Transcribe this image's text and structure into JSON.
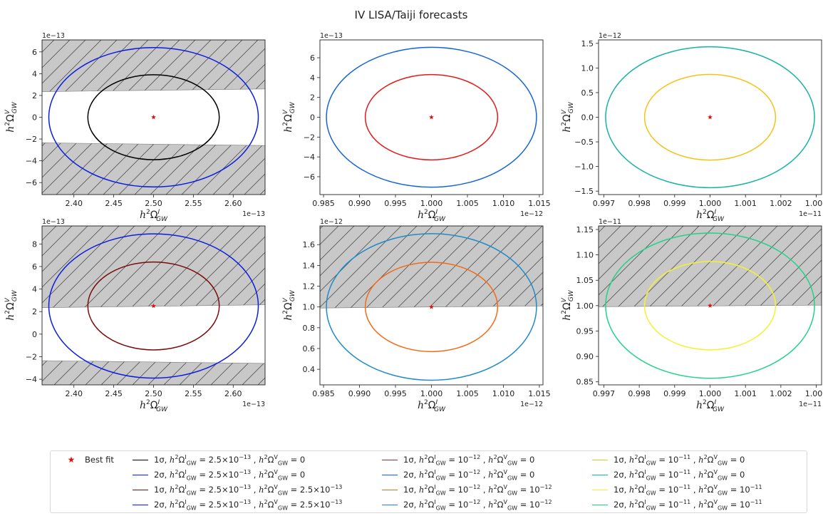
{
  "suptitle": "IV LISA/Taiji forecasts",
  "xlabel_tex": [
    "h",
    "2",
    "Ω",
    "I",
    "GW"
  ],
  "ylabel_tex": [
    "h",
    "2",
    "Ω",
    "V",
    "GW"
  ],
  "colors": {
    "hatch_fill": "#c8c8c8",
    "hatch_line": "#555555",
    "best_fit": "#e01010",
    "axis": "#222222"
  },
  "chart_data": [
    {
      "type": "scatter",
      "panel": 1,
      "xlim": [
        2.36,
        2.64
      ],
      "ylim": [
        -7.1,
        7.1
      ],
      "x_ticks": [
        2.4,
        2.45,
        2.5,
        2.55,
        2.6
      ],
      "x_tick_labels": [
        "2.40",
        "2.45",
        "2.50",
        "2.55",
        "2.60"
      ],
      "y_ticks": [
        -6,
        -4,
        -2,
        0,
        2,
        4,
        6
      ],
      "y_tick_labels": [
        "−6",
        "−4",
        "−2",
        "0",
        "2",
        "4",
        "6"
      ],
      "x_offset": "1e−13",
      "y_offset": "1e−13",
      "best_fit": [
        2.5,
        0
      ],
      "ellipses": [
        {
          "name": "1σ",
          "color": "#000000",
          "cx": 2.5,
          "cy": 0,
          "rx": 0.0825,
          "ry": 3.9
        },
        {
          "name": "2σ",
          "color": "#0b1ee0",
          "cx": 2.5,
          "cy": 0,
          "rx": 0.1315,
          "ry": 6.4
        }
      ],
      "excluded_regions": [
        {
          "lower_boundary": [
            [
              2.36,
              2.35
            ],
            [
              2.64,
              2.6
            ]
          ],
          "side": "above"
        },
        {
          "upper_boundary": [
            [
              2.36,
              -2.35
            ],
            [
              2.64,
              -2.6
            ]
          ],
          "side": "below"
        }
      ]
    },
    {
      "type": "scatter",
      "panel": 2,
      "xlim": [
        0.9845,
        1.0155
      ],
      "ylim": [
        -7.8,
        7.8
      ],
      "x_ticks": [
        0.985,
        0.99,
        0.995,
        1.0,
        1.005,
        1.01,
        1.015
      ],
      "x_tick_labels": [
        "0.985",
        "0.990",
        "0.995",
        "1.000",
        "1.005",
        "1.010",
        "1.015"
      ],
      "y_ticks": [
        -6,
        -4,
        -2,
        0,
        2,
        4,
        6
      ],
      "y_tick_labels": [
        "−6",
        "−4",
        "−2",
        "0",
        "2",
        "4",
        "6"
      ],
      "x_offset": "1e−12",
      "y_offset": "1e−13",
      "best_fit": [
        1.0,
        0
      ],
      "ellipses": [
        {
          "name": "1σ",
          "color": "#e31a1c",
          "cx": 1.0,
          "cy": 0,
          "rx": 0.0092,
          "ry": 4.3
        },
        {
          "name": "2σ",
          "color": "#1565d6",
          "cx": 1.0,
          "cy": 0,
          "rx": 0.0146,
          "ry": 7.05
        }
      ],
      "excluded_regions": []
    },
    {
      "type": "scatter",
      "panel": 3,
      "xlim": [
        0.99685,
        1.00315
      ],
      "ylim": [
        -1.57,
        1.57
      ],
      "x_ticks": [
        0.997,
        0.998,
        0.999,
        1.0,
        1.001,
        1.002,
        1.003
      ],
      "x_tick_labels": [
        "0.997",
        "0.998",
        "0.999",
        "1.000",
        "1.001",
        "1.002",
        "1.003"
      ],
      "y_ticks": [
        -1.5,
        -1.0,
        -0.5,
        0.0,
        0.5,
        1.0,
        1.5
      ],
      "y_tick_labels": [
        "−1.5",
        "−1.0",
        "−0.5",
        "0.0",
        "0.5",
        "1.0",
        "1.5"
      ],
      "x_offset": "1e−11",
      "y_offset": "1e−12",
      "best_fit": [
        1.0,
        0
      ],
      "ellipses": [
        {
          "name": "1σ",
          "color": "#f5c21a",
          "cx": 1.0,
          "cy": 0,
          "rx": 0.00185,
          "ry": 0.87
        },
        {
          "name": "2σ",
          "color": "#17b3a3",
          "cx": 1.0,
          "cy": 0,
          "rx": 0.00295,
          "ry": 1.43
        }
      ],
      "excluded_regions": []
    },
    {
      "type": "scatter",
      "panel": 4,
      "xlim": [
        2.36,
        2.64
      ],
      "ylim": [
        -4.5,
        9.6
      ],
      "x_ticks": [
        2.4,
        2.45,
        2.5,
        2.55,
        2.6
      ],
      "x_tick_labels": [
        "2.40",
        "2.45",
        "2.50",
        "2.55",
        "2.60"
      ],
      "y_ticks": [
        -4,
        -2,
        0,
        2,
        4,
        6,
        8
      ],
      "y_tick_labels": [
        "−4",
        "−2",
        "0",
        "2",
        "4",
        "6",
        "8"
      ],
      "x_offset": "1e−13",
      "y_offset": "1e−13",
      "best_fit": [
        2.5,
        2.5
      ],
      "ellipses": [
        {
          "name": "1σ",
          "color": "#7a0c0c",
          "cx": 2.5,
          "cy": 2.5,
          "rx": 0.0825,
          "ry": 3.9
        },
        {
          "name": "2σ",
          "color": "#0b1ee0",
          "cx": 2.5,
          "cy": 2.5,
          "rx": 0.1315,
          "ry": 6.4
        }
      ],
      "excluded_regions": [
        {
          "lower_boundary": [
            [
              2.36,
              2.35
            ],
            [
              2.64,
              2.6
            ]
          ],
          "side": "above"
        },
        {
          "upper_boundary": [
            [
              2.36,
              -2.35
            ],
            [
              2.64,
              -2.6
            ]
          ],
          "side": "below"
        }
      ]
    },
    {
      "type": "scatter",
      "panel": 5,
      "xlim": [
        0.9845,
        1.0155
      ],
      "ylim": [
        0.25,
        1.78
      ],
      "x_ticks": [
        0.985,
        0.99,
        0.995,
        1.0,
        1.005,
        1.01,
        1.015
      ],
      "x_tick_labels": [
        "0.985",
        "0.990",
        "0.995",
        "1.000",
        "1.005",
        "1.010",
        "1.015"
      ],
      "y_ticks": [
        0.4,
        0.6,
        0.8,
        1.0,
        1.2,
        1.4,
        1.6
      ],
      "y_tick_labels": [
        "0.4",
        "0.6",
        "0.8",
        "1.0",
        "1.2",
        "1.4",
        "1.6"
      ],
      "x_offset": "1e−12",
      "y_offset": "1e−12",
      "best_fit": [
        1.0,
        1.0
      ],
      "ellipses": [
        {
          "name": "1σ",
          "color": "#f26a16",
          "cx": 1.0,
          "cy": 1.0,
          "rx": 0.0092,
          "ry": 0.43
        },
        {
          "name": "2σ",
          "color": "#1f8bc9",
          "cx": 1.0,
          "cy": 1.0,
          "rx": 0.0146,
          "ry": 0.705
        }
      ],
      "excluded_regions": [
        {
          "lower_boundary": [
            [
              0.9845,
              0.99
            ],
            [
              1.0155,
              1.01
            ]
          ],
          "side": "above"
        }
      ]
    },
    {
      "type": "scatter",
      "panel": 6,
      "xlim": [
        0.99685,
        1.00315
      ],
      "ylim": [
        0.844,
        1.157
      ],
      "x_ticks": [
        0.997,
        0.998,
        0.999,
        1.0,
        1.001,
        1.002,
        1.003
      ],
      "x_tick_labels": [
        "0.997",
        "0.998",
        "0.999",
        "1.000",
        "1.001",
        "1.002",
        "1.003"
      ],
      "y_ticks": [
        0.85,
        0.9,
        0.95,
        1.0,
        1.05,
        1.1,
        1.15
      ],
      "y_tick_labels": [
        "0.85",
        "0.90",
        "0.95",
        "1.00",
        "1.05",
        "1.10",
        "1.15"
      ],
      "x_offset": "1e−11",
      "y_offset": "1e−11",
      "best_fit": [
        1.0,
        1.0
      ],
      "ellipses": [
        {
          "name": "1σ",
          "color": "#f2f230",
          "cx": 1.0,
          "cy": 1.0,
          "rx": 0.00185,
          "ry": 0.087
        },
        {
          "name": "2σ",
          "color": "#21d28a",
          "cx": 1.0,
          "cy": 1.0,
          "rx": 0.00295,
          "ry": 0.143
        }
      ],
      "excluded_regions": [
        {
          "lower_boundary": [
            [
              0.99685,
              0.998
            ],
            [
              1.00315,
              1.001
            ]
          ],
          "side": "above"
        }
      ]
    }
  ],
  "legend": [
    {
      "kind": "marker",
      "color": "#e01010",
      "sigma": "",
      "text": "Best fit"
    },
    {
      "kind": "line",
      "color": "#000000",
      "sigma": "1σ,",
      "xval": "2.5×10",
      "xexp": "−13",
      "yval": "0",
      "yexp": ""
    },
    {
      "kind": "line",
      "color": "#0b1ee0",
      "sigma": "2σ,",
      "xval": "2.5×10",
      "xexp": "−13",
      "yval": "0",
      "yexp": ""
    },
    {
      "kind": "line",
      "color": "#7a0c0c",
      "sigma": "1σ,",
      "xval": "2.5×10",
      "xexp": "−13",
      "yval": "2.5×10",
      "yexp": "−13"
    },
    {
      "kind": "line",
      "color": "#0b1ee0",
      "sigma": "2σ,",
      "xval": "2.5×10",
      "xexp": "−13",
      "yval": "2.5×10",
      "yexp": "−13"
    },
    {
      "kind": "line",
      "color": "#e31a1c",
      "sigma": "1σ,",
      "xval": "10",
      "xexp": "−12",
      "yval": "0",
      "yexp": ""
    },
    {
      "kind": "line",
      "color": "#1565d6",
      "sigma": "2σ,",
      "xval": "10",
      "xexp": "−12",
      "yval": "0",
      "yexp": ""
    },
    {
      "kind": "line",
      "color": "#f26a16",
      "sigma": "1σ,",
      "xval": "10",
      "xexp": "−12",
      "yval": "10",
      "yexp": "−12"
    },
    {
      "kind": "line",
      "color": "#1f8bc9",
      "sigma": "2σ,",
      "xval": "10",
      "xexp": "−12",
      "yval": "10",
      "yexp": "−12"
    },
    {
      "kind": "line",
      "color": "#f5c21a",
      "sigma": "1σ,",
      "xval": "10",
      "xexp": "−11",
      "yval": "0",
      "yexp": ""
    },
    {
      "kind": "line",
      "color": "#17b3a3",
      "sigma": "2σ,",
      "xval": "10",
      "xexp": "−11",
      "yval": "0",
      "yexp": ""
    },
    {
      "kind": "line",
      "color": "#f2f230",
      "sigma": "1σ,",
      "xval": "10",
      "xexp": "−11",
      "yval": "10",
      "yexp": "−11"
    },
    {
      "kind": "line",
      "color": "#21d28a",
      "sigma": "2σ,",
      "xval": "10",
      "xexp": "−11",
      "yval": "10",
      "yexp": "−11"
    }
  ]
}
